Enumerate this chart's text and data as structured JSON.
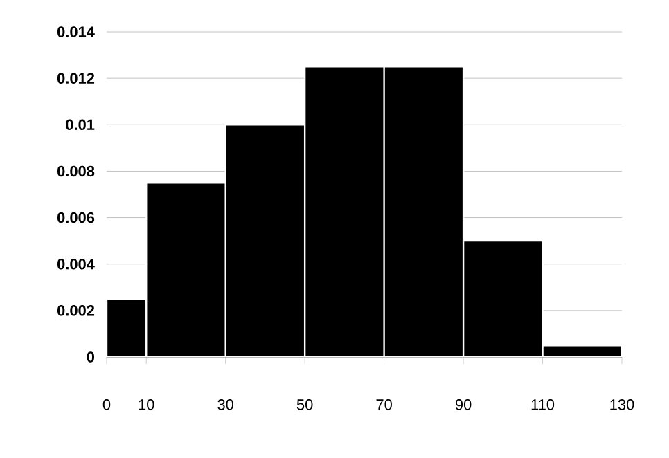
{
  "chart_data": {
    "type": "histogram",
    "bins": [
      0,
      10,
      30,
      50,
      70,
      90,
      110,
      130
    ],
    "values": [
      0.0025,
      0.0075,
      0.01,
      0.0125,
      0.0125,
      0.005,
      0.0005
    ],
    "color": "#000000",
    "xlim": [
      0,
      130
    ],
    "xticks": [
      0,
      10,
      30,
      50,
      70,
      90,
      110,
      130
    ],
    "ylim": [
      0,
      0.014
    ],
    "yticks": [
      0,
      0.002,
      0.004,
      0.006,
      0.008,
      0.01,
      0.012,
      0.014
    ],
    "grid": "y"
  }
}
